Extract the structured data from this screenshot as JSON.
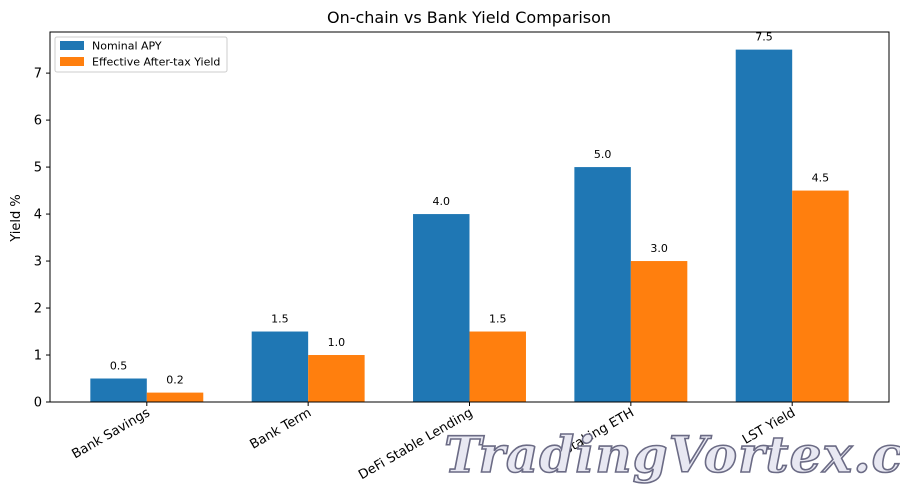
{
  "chart_data": {
    "type": "bar",
    "title": "On-chain vs Bank Yield Comparison",
    "xlabel": "",
    "ylabel": "Yield %",
    "categories": [
      "Bank Savings",
      "Bank Term",
      "DeFi Stable Lending",
      "Staking ETH",
      "LST Yield"
    ],
    "series": [
      {
        "name": "Nominal APY",
        "color": "#1f77b4",
        "values": [
          0.5,
          1.5,
          4.0,
          5.0,
          7.5
        ],
        "labels": [
          "0.5",
          "1.5",
          "4.0",
          "5.0",
          "7.5"
        ]
      },
      {
        "name": "Effective After-tax Yield",
        "color": "#ff7f0e",
        "values": [
          0.2,
          1.0,
          1.5,
          3.0,
          4.5
        ],
        "labels": [
          "0.2",
          "1.0",
          "1.5",
          "3.0",
          "4.5"
        ]
      }
    ],
    "ylim": [
      0,
      7.875
    ],
    "yticks": [
      "0",
      "1",
      "2",
      "3",
      "4",
      "5",
      "6",
      "7"
    ],
    "grid": false,
    "legend_position": "top-left"
  },
  "watermark": {
    "text": "TradingVortex.com"
  }
}
